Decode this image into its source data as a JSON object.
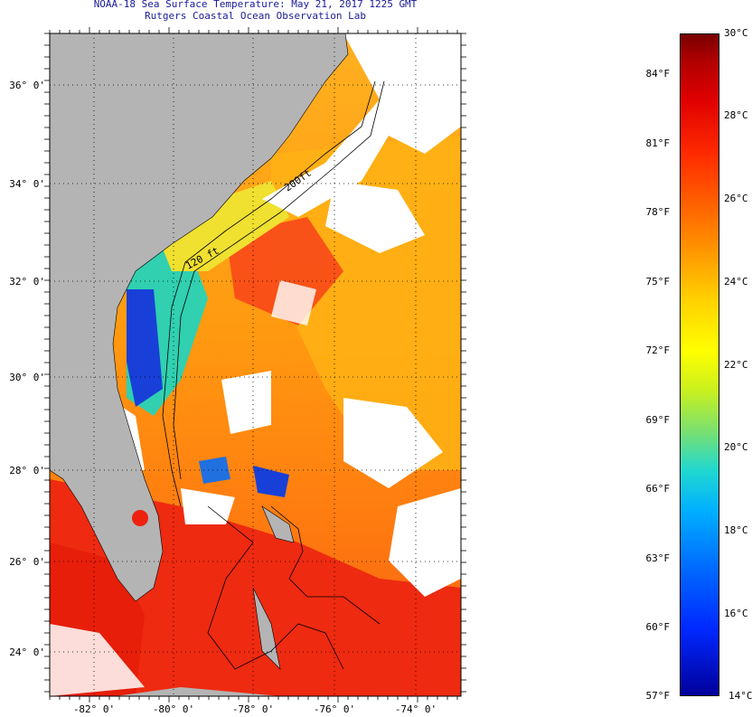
{
  "title": {
    "line1": "NOAA-18 Sea Surface Temperature:  May 21, 2017 1225 GMT",
    "line2": "Rutgers Coastal Ocean Observation Lab"
  },
  "map": {
    "latitude_labels": [
      "36° 0'",
      "34° 0'",
      "32° 0'",
      "30° 0'",
      "28° 0'",
      "26° 0'",
      "24° 0'"
    ],
    "longitude_labels": [
      "-82° 0'",
      "-80° 0'",
      "-78° 0'",
      "-76° 0'",
      "-74° 0'"
    ],
    "contour_labels": [
      "120 ft",
      "200ft"
    ],
    "colors": {
      "land": "#b4b4b4",
      "cloud": "#ffffff",
      "warm_sst": "#ff9a10",
      "hot_sst": "#ee2a10",
      "cool_sst": "#20c0f0",
      "cold_sst": "#0a20c8"
    }
  },
  "colorbar": {
    "fahrenheit": [
      "84°F",
      "81°F",
      "78°F",
      "75°F",
      "72°F",
      "69°F",
      "66°F",
      "63°F",
      "60°F",
      "57°F"
    ],
    "celsius": [
      "30°C",
      "28°C",
      "26°C",
      "24°C",
      "22°C",
      "20°C",
      "18°C",
      "16°C",
      "14°C"
    ]
  }
}
